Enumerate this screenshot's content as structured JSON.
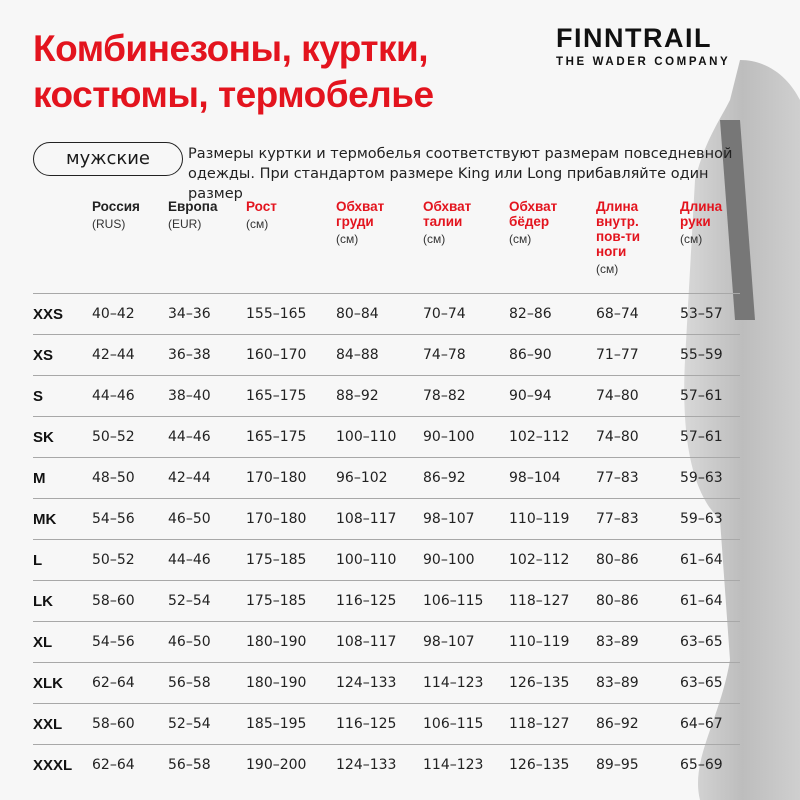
{
  "title_lines": [
    "Комбинезоны, куртки,",
    "костюмы, термобелье"
  ],
  "logo": {
    "main": "FINNTRAIL",
    "sub": "THE WADER COMPANY"
  },
  "category_pill": "мужские",
  "note": "Размеры куртки и термобелья соответствуют размерам повседневной одежды. При стандартом размере King или Long прибавляйте один размер",
  "colors": {
    "accent": "#e3141e",
    "text": "#1a1a1a",
    "background": "#f7f7f7"
  },
  "columns": [
    {
      "label": [
        "Россия"
      ],
      "unit": "(RUS)",
      "accent": false
    },
    {
      "label": [
        "Европа"
      ],
      "unit": "(EUR)",
      "accent": false
    },
    {
      "label": [
        "Рост"
      ],
      "unit": "(см)",
      "accent": true
    },
    {
      "label": [
        "Обхват",
        "груди"
      ],
      "unit": "(см)",
      "accent": true
    },
    {
      "label": [
        "Обхват",
        "талии"
      ],
      "unit": "(см)",
      "accent": true
    },
    {
      "label": [
        "Обхват",
        "бёдер"
      ],
      "unit": "(см)",
      "accent": true
    },
    {
      "label": [
        "Длина",
        "внутр.",
        "пов-ти",
        "ноги"
      ],
      "unit": "(см)",
      "accent": true
    },
    {
      "label": [
        "Длина",
        "руки"
      ],
      "unit": "(см)",
      "accent": true
    }
  ],
  "rows": [
    [
      "XXS",
      "40–42",
      "34–36",
      "155–165",
      "80–84",
      "70–74",
      "82–86",
      "68–74",
      "53–57"
    ],
    [
      "XS",
      "42–44",
      "36–38",
      "160–170",
      "84–88",
      "74–78",
      "86–90",
      "71–77",
      "55–59"
    ],
    [
      "S",
      "44–46",
      "38–40",
      "165–175",
      "88–92",
      "78–82",
      "90–94",
      "74–80",
      "57–61"
    ],
    [
      "SK",
      "50–52",
      "44–46",
      "165–175",
      "100–110",
      "90–100",
      "102–112",
      "74–80",
      "57–61"
    ],
    [
      "M",
      "48–50",
      "42–44",
      "170–180",
      "96–102",
      "86–92",
      "98–104",
      "77–83",
      "59–63"
    ],
    [
      "MK",
      "54–56",
      "46–50",
      "170–180",
      "108–117",
      "98–107",
      "110–119",
      "77–83",
      "59–63"
    ],
    [
      "L",
      "50–52",
      "44–46",
      "175–185",
      "100–110",
      "90–100",
      "102–112",
      "80–86",
      "61–64"
    ],
    [
      "LK",
      "58–60",
      "52–54",
      "175–185",
      "116–125",
      "106–115",
      "118–127",
      "80–86",
      "61–64"
    ],
    [
      "XL",
      "54–56",
      "46–50",
      "180–190",
      "108–117",
      "98–107",
      "110–119",
      "83–89",
      "63–65"
    ],
    [
      "XLK",
      "62–64",
      "56–58",
      "180–190",
      "124–133",
      "114–123",
      "126–135",
      "83–89",
      "63–65"
    ],
    [
      "XXL",
      "58–60",
      "52–54",
      "185–195",
      "116–125",
      "106–115",
      "118–127",
      "86–92",
      "64–67"
    ],
    [
      "XXXL",
      "62–64",
      "56–58",
      "190–200",
      "124–133",
      "114–123",
      "126–135",
      "89–95",
      "65–69"
    ]
  ]
}
